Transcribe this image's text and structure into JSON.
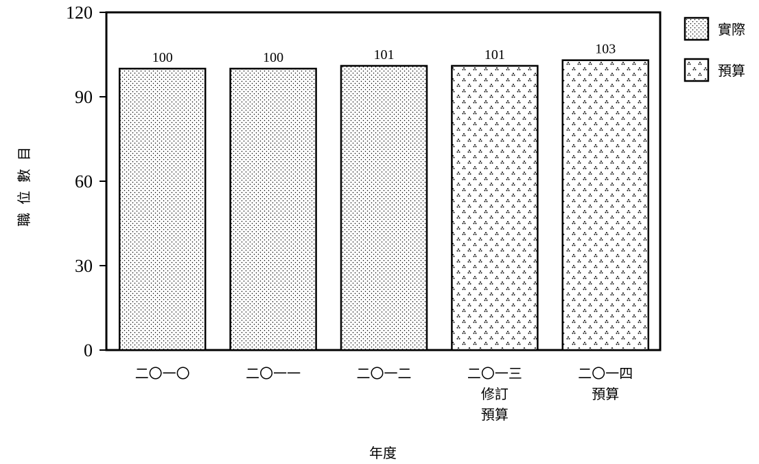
{
  "chart_data": {
    "type": "bar",
    "categories": [
      [
        "二〇一〇"
      ],
      [
        "二〇一一"
      ],
      [
        "二〇一二"
      ],
      [
        "二〇一三",
        "修訂",
        "預算"
      ],
      [
        "二〇一四",
        "預算"
      ]
    ],
    "values": [
      100,
      100,
      101,
      101,
      103
    ],
    "value_labels": [
      "100",
      "100",
      "101",
      "101",
      "103"
    ],
    "bar_kind": [
      "actual",
      "actual",
      "actual",
      "budget",
      "budget"
    ],
    "ylabel": "職位數目",
    "xlabel": "年度",
    "ylim": [
      0,
      120
    ],
    "yticks": [
      0,
      30,
      60,
      90,
      120
    ],
    "grid": false,
    "legend": {
      "placement": "top-right",
      "items": [
        {
          "key": "actual",
          "label": "實際"
        },
        {
          "key": "budget",
          "label": "預算"
        }
      ]
    },
    "colors": {
      "bar_fill": "#ffffff",
      "bar_stroke": "#000000",
      "pattern_dots": "#000000"
    }
  }
}
